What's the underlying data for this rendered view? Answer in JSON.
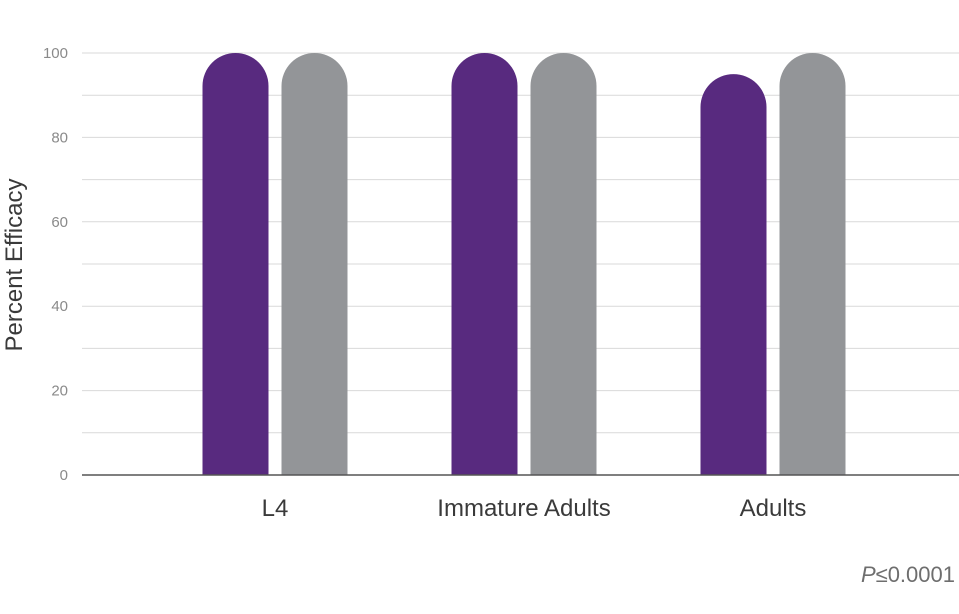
{
  "chart_data": {
    "type": "bar",
    "categories": [
      "L4",
      "Immature Adults",
      "Adults"
    ],
    "series": [
      {
        "values": [
          100,
          100,
          95
        ],
        "color": "#582a7f"
      },
      {
        "values": [
          100,
          100,
          100
        ],
        "color": "#939598"
      }
    ],
    "ylabel": "Percent Efficacy",
    "ylim": [
      0,
      100
    ],
    "yticks": [
      0,
      20,
      40,
      60,
      80,
      100
    ],
    "minor_gridlines": true,
    "legend": "none"
  },
  "footnote": {
    "italic_part": "P",
    "rest": "≤0.0001"
  }
}
